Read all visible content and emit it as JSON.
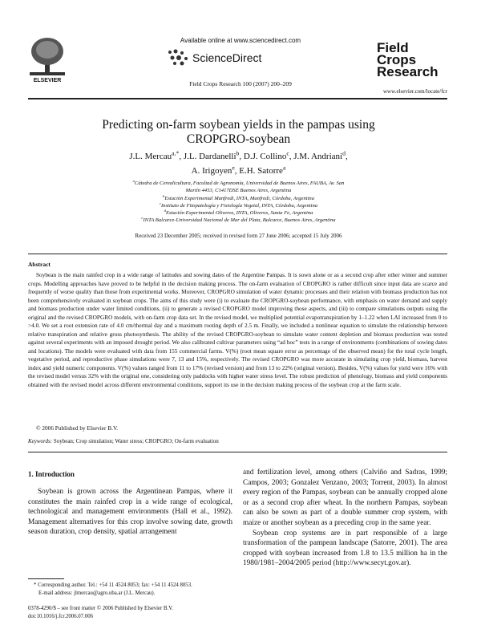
{
  "header": {
    "available": "Available online at www.sciencedirect.com",
    "sciencedirect": "ScienceDirect",
    "citation": "Field Crops Research 100 (2007) 200–209",
    "publisher": "ELSEVIER",
    "logo_lines": [
      "Field",
      "Crops",
      "Research"
    ],
    "url": "www.elsevier.com/locate/fcr"
  },
  "title": "Predicting on-farm soybean yields in the pampas using CROPGRO-soybean",
  "authors": [
    {
      "name": "J.L. Mercau",
      "sup": "a,*",
      "after": ","
    },
    {
      "name": "J.L. Dardanelli",
      "sup": "b",
      "after": ","
    },
    {
      "name": "D.J. Collino",
      "sup": "c",
      "after": ","
    },
    {
      "name": "J.M. Andriani",
      "sup": "d",
      "after": ","
    },
    {
      "name": "A. Irigoyen",
      "sup": "e",
      "after": ","
    },
    {
      "name": "E.H. Satorre",
      "sup": "a"
    }
  ],
  "affiliations": [
    {
      "sup": "a",
      "text": "Cátedra de Cerealicultura, Facultad de Agronomía, Universidad de Buenos Aires, FAUBA, Av. San Martín 4453, C1417DSE Buenos Aires, Argentina"
    },
    {
      "sup": "b",
      "text": "Estación Experimental Manfredi, INTA, Manfredi, Córdoba, Argentina"
    },
    {
      "sup": "c",
      "text": "Instituto de Fitopatología y Fisiología Vegetal, INTA, Córdoba, Argentina"
    },
    {
      "sup": "d",
      "text": "Estación Experimental Oliveros, INTA, Oliveros, Santa Fe, Argentina"
    },
    {
      "sup": "e",
      "text": "INTA Balcarce-Universidad Nacional de Mar del Plata, Balcarce, Buenos Aires, Argentina"
    }
  ],
  "received": "Received 23 December 2005; received in revised form 27 June 2006; accepted 15 July 2006",
  "abstract": {
    "heading": "Abstract",
    "text": "Soybean is the main rainfed crop in a wide range of latitudes and sowing dates of the Argentine Pampas. It is sown alone or as a second crop after other winter and summer crops. Modelling approaches have proved to be helpful in the decision making process. The on-farm evaluation of CROPGRO is rather difficult since input data are scarce and frequently of worse quality than those from experimental works. Moreover, CROPGRO simulation of water dynamic processes and their relation with biomass production has not been comprehensively evaluated in soybean crops. The aims of this study were (i) to evaluate the CROPGRO-soybean performance, with emphasis on water demand and supply and biomass production under water limited conditions, (ii) to generate a revised CROPGRO model improving those aspects, and (iii) to compare simulations outputs using the original and the revised CROPGRO models, with on-farm crop data set. In the revised model, we multiplied potential evapotranspiration by 1–1.22 when LAI increased from 0 to >4.0. We set a root extension rate of 4.0 cm/thermal day and a maximum rooting depth of 2.5 m. Finally, we included a nonlinear equation to simulate the relationship between relative transpiration and relative gross photosynthesis. The ability of the revised CROPGRO-soybean to simulate water content depletion and biomass production was tested against several experiments with an imposed drought period. We also calibrated cultivar parameters using “ad hoc” tests in a range of environments (combinations of sowing dates and locations). The models were evaluated with data from 155 commercial farms. V(%) (root mean square error as percentage of the observed mean) for the total cycle length, vegetative period, and reproductive phase simulations were 7, 13 and 15%, respectively. The revised CROPGRO was more accurate in simulating crop yield, biomass, harvest index and yield numeric components. V(%) values ranged from 11 to 17% (revised version) and from 13 to 22% (original version). Besides, V(%) values for yield were 16% with the revised model versus 32% with the original one, considering only paddocks with higher water stress level. The robust prediction of phenology, biomass and yield components obtained with the revised model across different environmental conditions, support its use in the decision making process of the soybean crop at the farm scale.",
    "copyright": "© 2006 Published by Elsevier B.V."
  },
  "keywords": {
    "label": "Keywords:",
    "text": "Soybean; Crop simulation; Water stress; CROPGRO; On-farm evaluation"
  },
  "section": {
    "heading": "1. Introduction",
    "left": [
      "Soybean is grown across the Argentinean Pampas, where it constitutes the main rainfed crop in a wide range of ecological, technological and management environments (Hall et al., 1992). Management alternatives for this crop involve sowing date, growth season duration, crop density, spatial arrangement"
    ],
    "right": [
      "and fertilization level, among others (Calviño and Sadras, 1999; Campos, 2003; Gonzalez Venzano, 2003; Torrent, 2003). In almost every region of the Pampas, soybean can be annually cropped alone or as a second crop after wheat. In the northern Pampas, soybean can also be sown as part of a double summer crop system, with maize or another soybean as a preceding crop in the same year.",
      "Soybean crop systems are in part responsible of a large transformation of the pampean landscape (Satorre, 2001). The area cropped with soybean increased from 1.8 to 13.5 million ha in the 1980/1981–2004/2005 period (http://www.secyt.gov.ar)."
    ]
  },
  "footnote": [
    "* Corresponding author. Tel.: +54 11 4524 8053; fax: +54 11 4524 8053.",
    "E-mail address: jlmercau@agro.uba.ar (J.L. Mercau)."
  ],
  "footer": [
    "0378-4290/$ – see front matter © 2006 Published by Elsevier B.V.",
    "doi:10.1016/j.fcr.2006.07.006"
  ]
}
